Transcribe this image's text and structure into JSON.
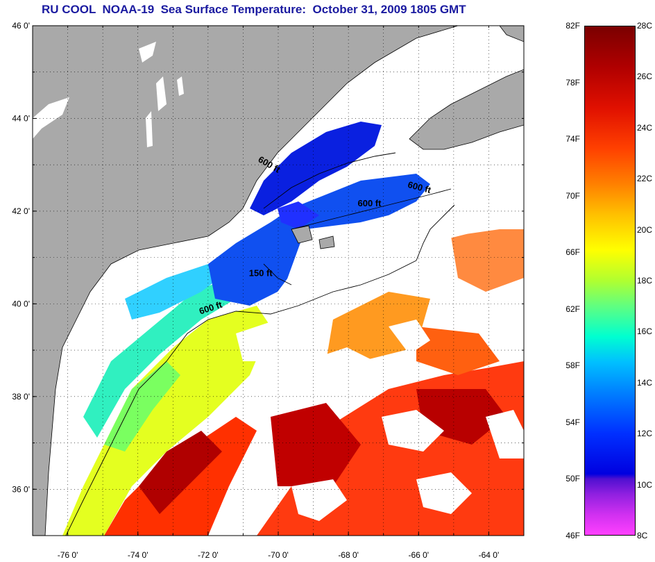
{
  "title": "RU COOL  NOAA-19  Sea Surface Temperature:  October 31, 2009 1805 GMT",
  "map": {
    "lon_range": [
      -77,
      -63
    ],
    "lat_range": [
      35,
      46
    ],
    "lon_ticks": [
      {
        "value": -76,
        "label": "-76 0'"
      },
      {
        "value": -74,
        "label": "-74 0'"
      },
      {
        "value": -72,
        "label": "-72 0'"
      },
      {
        "value": -70,
        "label": "-70 0'"
      },
      {
        "value": -68,
        "label": "-68 0'"
      },
      {
        "value": -66,
        "label": "-66 0'"
      },
      {
        "value": -64,
        "label": "-64 0'"
      }
    ],
    "lat_ticks": [
      {
        "value": 46,
        "label": "46 0'"
      },
      {
        "value": 44,
        "label": "44 0'"
      },
      {
        "value": 42,
        "label": "42 0'"
      },
      {
        "value": 40,
        "label": "40 0'"
      },
      {
        "value": 38,
        "label": "38 0'"
      },
      {
        "value": 36,
        "label": "36 0'"
      }
    ],
    "contour_labels": [
      {
        "text": "600 ft",
        "lon": -70.3,
        "lat": 42.95,
        "rotate": 30
      },
      {
        "text": "600 ft",
        "lon": -66.0,
        "lat": 42.45,
        "rotate": 15
      },
      {
        "text": "600 ft",
        "lon": -67.4,
        "lat": 42.1,
        "rotate": 0
      },
      {
        "text": "150 ft",
        "lon": -70.5,
        "lat": 40.6,
        "rotate": 0
      },
      {
        "text": "600 ft",
        "lon": -71.9,
        "lat": 39.85,
        "rotate": -18
      }
    ],
    "colors": {
      "land": "#a9a9a9",
      "cloud": "#ffffff"
    }
  },
  "colorbar": {
    "fahrenheit": [
      "82F",
      "78F",
      "74F",
      "70F",
      "66F",
      "62F",
      "58F",
      "54F",
      "50F",
      "46F"
    ],
    "celsius": [
      "28C",
      "26C",
      "24C",
      "22C",
      "20C",
      "18C",
      "16C",
      "14C",
      "12C",
      "10C",
      "8C"
    ]
  }
}
